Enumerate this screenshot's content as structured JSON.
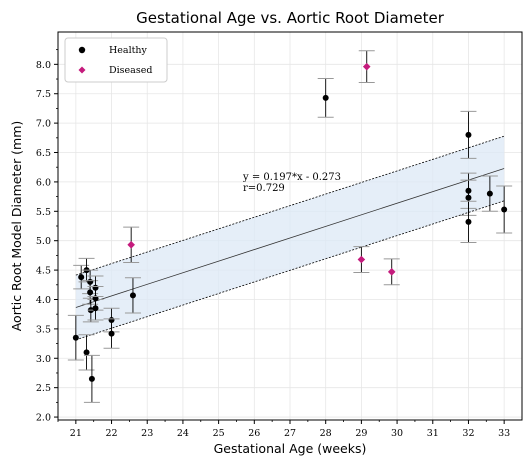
{
  "chart_data": {
    "type": "scatter",
    "title": "Gestational Age vs. Aortic Root Diameter",
    "xlabel": "Gestational Age (weeks)",
    "ylabel": "Aortic Root Model Diameter (mm)",
    "xlim": [
      20.5,
      33.5
    ],
    "ylim": [
      1.95,
      8.55
    ],
    "xticks": [
      "21",
      "22",
      "23",
      "24",
      "25",
      "26",
      "27",
      "28",
      "29",
      "30",
      "31",
      "32",
      "33"
    ],
    "yticks": [
      "2.0",
      "2.5",
      "3.0",
      "3.5",
      "4.0",
      "4.5",
      "5.0",
      "5.5",
      "6.0",
      "6.5",
      "7.0",
      "7.5",
      "8.0"
    ],
    "grid": true,
    "legend_position": "top-left",
    "series": [
      {
        "name": "Healthy",
        "marker": "circle",
        "color": "#000000",
        "points": [
          {
            "x": 21.0,
            "y": 3.35,
            "err": 0.38
          },
          {
            "x": 21.15,
            "y": 4.38,
            "err": 0.2
          },
          {
            "x": 21.3,
            "y": 4.5,
            "err": 0.2
          },
          {
            "x": 21.3,
            "y": 3.1,
            "err": 0.3
          },
          {
            "x": 21.4,
            "y": 4.3,
            "err": 0.2
          },
          {
            "x": 21.4,
            "y": 4.12,
            "err": 0.2
          },
          {
            "x": 21.42,
            "y": 3.82,
            "err": 0.2
          },
          {
            "x": 21.45,
            "y": 2.65,
            "err": 0.4
          },
          {
            "x": 21.55,
            "y": 4.2,
            "err": 0.2
          },
          {
            "x": 21.55,
            "y": 4.02,
            "err": 0.2
          },
          {
            "x": 21.55,
            "y": 3.85,
            "err": 0.2
          },
          {
            "x": 22.0,
            "y": 3.65,
            "err": 0.2
          },
          {
            "x": 22.0,
            "y": 3.42,
            "err": 0.25
          },
          {
            "x": 22.6,
            "y": 4.07,
            "err": 0.3
          },
          {
            "x": 28.0,
            "y": 7.43,
            "err": 0.33
          },
          {
            "x": 32.0,
            "y": 6.8,
            "err": 0.4
          },
          {
            "x": 32.0,
            "y": 5.85,
            "err": 0.3
          },
          {
            "x": 32.0,
            "y": 5.73,
            "err": 0.3
          },
          {
            "x": 32.0,
            "y": 5.32,
            "err": 0.35
          },
          {
            "x": 32.6,
            "y": 5.8,
            "err": 0.3
          },
          {
            "x": 33.0,
            "y": 5.53,
            "err": 0.4
          }
        ]
      },
      {
        "name": "Diseased",
        "marker": "diamond",
        "color": "#c51b7d",
        "points": [
          {
            "x": 22.55,
            "y": 4.93,
            "err": 0.3
          },
          {
            "x": 29.0,
            "y": 4.68,
            "err": 0.22
          },
          {
            "x": 29.15,
            "y": 7.96,
            "err": 0.27
          },
          {
            "x": 29.85,
            "y": 4.47,
            "err": 0.22
          }
        ]
      }
    ],
    "fit": {
      "slope": 0.197,
      "intercept": -0.273,
      "x_range": [
        21,
        33
      ],
      "band": 0.55,
      "band_color": "#dce8f5",
      "equation_text": "y = 0.197*x - 0.273",
      "r_text": "r=0.729"
    }
  }
}
